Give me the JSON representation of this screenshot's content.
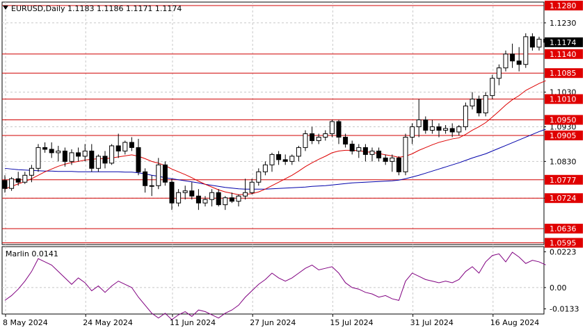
{
  "header": {
    "symbol_line": "EURUSD,Daily  1.1183 1.1186 1.1171 1.1174",
    "collapse_icon": "triangle-down-icon"
  },
  "chart_data": [
    {
      "type": "candlestick",
      "symbol": "EURUSD",
      "timeframe": "Daily",
      "ohlc_header": {
        "open": 1.1183,
        "high": 1.1186,
        "low": 1.1171,
        "close": 1.1174
      },
      "ylim": [
        1.059,
        1.129
      ],
      "grid": true,
      "price_ticks": [
        "1.1230",
        "1.1030",
        "1.0930",
        "1.0830",
        "1.0724"
      ],
      "levels": [
        {
          "label": "1.1280",
          "value": 1.128
        },
        {
          "label": "1.1140",
          "value": 1.114
        },
        {
          "label": "1.1085",
          "value": 1.1085
        },
        {
          "label": "1.1010",
          "value": 1.101
        },
        {
          "label": "1.0950",
          "value": 1.095
        },
        {
          "label": "1.0905",
          "value": 1.0905
        },
        {
          "label": "1.0777",
          "value": 1.0777
        },
        {
          "label": "1.0724",
          "value": 1.0724
        },
        {
          "label": "1.0636",
          "value": 1.0636
        },
        {
          "label": "1.0595",
          "value": 1.0595
        }
      ],
      "last_price_label": "1.1174",
      "last_price": 1.1174,
      "x_labels": [
        "8 May 2024",
        "24 May 2024",
        "11 Jun 2024",
        "27 Jun 2024",
        "15 Jul 2024",
        "31 Jul 2024",
        "16 Aug 2024"
      ],
      "x_label_index": [
        0,
        12,
        25,
        37,
        49,
        61,
        73
      ],
      "candles": [
        [
          1.0775,
          1.079,
          1.074,
          1.0752
        ],
        [
          1.0752,
          1.0785,
          1.0745,
          1.078
        ],
        [
          1.078,
          1.08,
          1.076,
          1.077
        ],
        [
          1.077,
          1.08,
          1.0765,
          1.079
        ],
        [
          1.079,
          1.082,
          1.077,
          1.081
        ],
        [
          1.081,
          1.088,
          1.08,
          1.087
        ],
        [
          1.087,
          1.0885,
          1.0855,
          1.0865
        ],
        [
          1.0865,
          1.0885,
          1.084,
          1.0855
        ],
        [
          1.0855,
          1.0875,
          1.083,
          1.086
        ],
        [
          1.086,
          1.087,
          1.0815,
          1.083
        ],
        [
          1.083,
          1.0865,
          1.082,
          1.0855
        ],
        [
          1.0855,
          1.087,
          1.083,
          1.0845
        ],
        [
          1.0845,
          1.088,
          1.083,
          1.086
        ],
        [
          1.086,
          1.088,
          1.08,
          1.081
        ],
        [
          1.081,
          1.085,
          1.08,
          1.0845
        ],
        [
          1.0845,
          1.086,
          1.081,
          1.0825
        ],
        [
          1.0825,
          1.088,
          1.082,
          1.0875
        ],
        [
          1.0875,
          1.091,
          1.084,
          1.086
        ],
        [
          1.086,
          1.089,
          1.085,
          1.0885
        ],
        [
          1.0885,
          1.09,
          1.086,
          1.087
        ],
        [
          1.087,
          1.0895,
          1.079,
          1.08
        ],
        [
          1.08,
          1.081,
          1.074,
          1.076
        ],
        [
          1.076,
          1.079,
          1.073,
          1.076
        ],
        [
          1.076,
          1.084,
          1.075,
          1.082
        ],
        [
          1.082,
          1.083,
          1.076,
          1.077
        ],
        [
          1.077,
          1.078,
          1.069,
          1.071
        ],
        [
          1.071,
          1.075,
          1.07,
          1.074
        ],
        [
          1.074,
          1.076,
          1.072,
          1.0745
        ],
        [
          1.0745,
          1.077,
          1.072,
          1.073
        ],
        [
          1.073,
          1.075,
          1.069,
          1.071
        ],
        [
          1.071,
          1.073,
          1.07,
          1.072
        ],
        [
          1.072,
          1.075,
          1.07,
          1.074
        ],
        [
          1.074,
          1.075,
          1.07,
          1.0705
        ],
        [
          1.0705,
          1.073,
          1.069,
          1.0725
        ],
        [
          1.0725,
          1.074,
          1.071,
          1.0715
        ],
        [
          1.0715,
          1.0735,
          1.07,
          1.073
        ],
        [
          1.073,
          1.078,
          1.072,
          1.074
        ],
        [
          1.074,
          1.078,
          1.0735,
          1.077
        ],
        [
          1.077,
          1.081,
          1.076,
          1.08
        ],
        [
          1.08,
          1.083,
          1.079,
          1.082
        ],
        [
          1.082,
          1.0855,
          1.08,
          1.085
        ],
        [
          1.085,
          1.086,
          1.082,
          1.0835
        ],
        [
          1.0835,
          1.085,
          1.082,
          1.083
        ],
        [
          1.083,
          1.085,
          1.082,
          1.0845
        ],
        [
          1.0845,
          1.0875,
          1.083,
          1.087
        ],
        [
          1.087,
          1.092,
          1.086,
          1.091
        ],
        [
          1.091,
          1.093,
          1.088,
          1.089
        ],
        [
          1.089,
          1.091,
          1.088,
          1.09
        ],
        [
          1.09,
          1.092,
          1.089,
          1.091
        ],
        [
          1.091,
          1.095,
          1.09,
          1.0945
        ],
        [
          1.0945,
          1.095,
          1.088,
          1.09
        ],
        [
          1.09,
          1.091,
          1.087,
          1.088
        ],
        [
          1.088,
          1.089,
          1.085,
          1.086
        ],
        [
          1.086,
          1.088,
          1.084,
          1.087
        ],
        [
          1.087,
          1.088,
          1.083,
          1.085
        ],
        [
          1.085,
          1.087,
          1.083,
          1.086
        ],
        [
          1.086,
          1.087,
          1.083,
          1.084
        ],
        [
          1.084,
          1.085,
          1.082,
          1.083
        ],
        [
          1.083,
          1.085,
          1.08,
          1.084
        ],
        [
          1.084,
          1.0845,
          1.079,
          1.08
        ],
        [
          1.08,
          1.091,
          1.079,
          1.09
        ],
        [
          1.09,
          1.094,
          1.088,
          1.093
        ],
        [
          1.093,
          1.101,
          1.09,
          1.095
        ],
        [
          1.095,
          1.096,
          1.091,
          1.092
        ],
        [
          1.092,
          1.095,
          1.091,
          1.093
        ],
        [
          1.093,
          1.094,
          1.09,
          1.092
        ],
        [
          1.092,
          1.0935,
          1.091,
          1.0925
        ],
        [
          1.0925,
          1.094,
          1.09,
          1.0915
        ],
        [
          1.0915,
          1.0935,
          1.0905,
          1.093
        ],
        [
          1.093,
          1.1,
          1.092,
          1.099
        ],
        [
          1.099,
          1.103,
          1.098,
          1.101
        ],
        [
          1.101,
          1.102,
          1.096,
          1.097
        ],
        [
          1.097,
          1.103,
          1.096,
          1.102
        ],
        [
          1.102,
          1.108,
          1.101,
          1.107
        ],
        [
          1.107,
          1.111,
          1.105,
          1.11
        ],
        [
          1.11,
          1.115,
          1.109,
          1.114
        ],
        [
          1.114,
          1.117,
          1.11,
          1.112
        ],
        [
          1.112,
          1.116,
          1.109,
          1.111
        ],
        [
          1.111,
          1.12,
          1.11,
          1.119
        ],
        [
          1.119,
          1.12,
          1.115,
          1.116
        ],
        [
          1.116,
          1.119,
          1.115,
          1.1183
        ],
        [
          1.1183,
          1.1186,
          1.1171,
          1.1174
        ]
      ],
      "ma_fast_color": "#dd0000",
      "ma_fast": [
        1.075,
        1.0758,
        1.0765,
        1.0772,
        1.078,
        1.079,
        1.08,
        1.0808,
        1.0816,
        1.0822,
        1.0827,
        1.083,
        1.0834,
        1.0836,
        1.0838,
        1.0838,
        1.084,
        1.0843,
        1.0846,
        1.0849,
        1.0845,
        1.0838,
        1.083,
        1.0825,
        1.0818,
        1.0808,
        1.08,
        1.0792,
        1.0783,
        1.0773,
        1.0764,
        1.0756,
        1.0748,
        1.0742,
        1.0738,
        1.0734,
        1.0735,
        1.0737,
        1.0742,
        1.075,
        1.076,
        1.077,
        1.078,
        1.079,
        1.0802,
        1.0815,
        1.0826,
        1.0836,
        1.0845,
        1.0855,
        1.086,
        1.0862,
        1.0862,
        1.0861,
        1.0858,
        1.0856,
        1.0853,
        1.0849,
        1.0846,
        1.0842,
        1.0845,
        1.0852,
        1.0862,
        1.087,
        1.0878,
        1.0885,
        1.089,
        1.0895,
        1.0898,
        1.0908,
        1.092,
        1.093,
        1.0942,
        1.0958,
        1.0975,
        1.0993,
        1.1008,
        1.102,
        1.1035,
        1.1045,
        1.1055,
        1.1063
      ],
      "ma_slow_color": "#0000aa",
      "ma_slow": [
        1.081,
        1.0808,
        1.0806,
        1.0805,
        1.0804,
        1.0803,
        1.0802,
        1.0802,
        1.0801,
        1.0801,
        1.0801,
        1.08,
        1.08,
        1.08,
        1.08,
        1.08,
        1.08,
        1.08,
        1.0799,
        1.0799,
        1.0797,
        1.0794,
        1.079,
        1.0787,
        1.0783,
        1.078,
        1.0777,
        1.0774,
        1.0771,
        1.0768,
        1.0764,
        1.0761,
        1.0758,
        1.0755,
        1.0753,
        1.0751,
        1.075,
        1.075,
        1.075,
        1.075,
        1.0751,
        1.0752,
        1.0753,
        1.0754,
        1.0755,
        1.0756,
        1.0758,
        1.0759,
        1.076,
        1.0762,
        1.0764,
        1.0766,
        1.0768,
        1.0769,
        1.077,
        1.0771,
        1.0772,
        1.0773,
        1.0774,
        1.0776,
        1.078,
        1.0785,
        1.079,
        1.0796,
        1.0802,
        1.0808,
        1.0814,
        1.082,
        1.0826,
        1.0833,
        1.084,
        1.0846,
        1.0852,
        1.086,
        1.0868,
        1.0876,
        1.0884,
        1.0892,
        1.09,
        1.0908,
        1.0916,
        1.0923
      ]
    },
    {
      "type": "line",
      "title": "Marlin 0.0141",
      "value": 0.0141,
      "ylim": [
        -0.0165,
        0.0255
      ],
      "ticks": [
        "0.0223",
        "0.00",
        "-0.0133"
      ],
      "color": "#800080",
      "values": [
        -0.008,
        -0.005,
        -0.001,
        0.004,
        0.01,
        0.018,
        0.016,
        0.014,
        0.01,
        0.006,
        0.002,
        0.006,
        0.003,
        -0.002,
        0.001,
        -0.003,
        0.001,
        0.004,
        0.002,
        0.0,
        -0.006,
        -0.011,
        -0.016,
        -0.019,
        -0.016,
        -0.02,
        -0.017,
        -0.015,
        -0.018,
        -0.014,
        -0.015,
        -0.017,
        -0.019,
        -0.016,
        -0.014,
        -0.011,
        -0.006,
        -0.002,
        0.002,
        0.005,
        0.009,
        0.006,
        0.004,
        0.006,
        0.009,
        0.012,
        0.014,
        0.011,
        0.012,
        0.013,
        0.009,
        0.003,
        0.0,
        -0.001,
        -0.003,
        -0.004,
        -0.006,
        -0.005,
        -0.007,
        -0.008,
        0.004,
        0.009,
        0.007,
        0.005,
        0.004,
        0.003,
        0.004,
        0.003,
        0.005,
        0.01,
        0.013,
        0.009,
        0.016,
        0.02,
        0.021,
        0.016,
        0.022,
        0.019,
        0.015,
        0.017,
        0.016,
        0.0141
      ]
    }
  ]
}
